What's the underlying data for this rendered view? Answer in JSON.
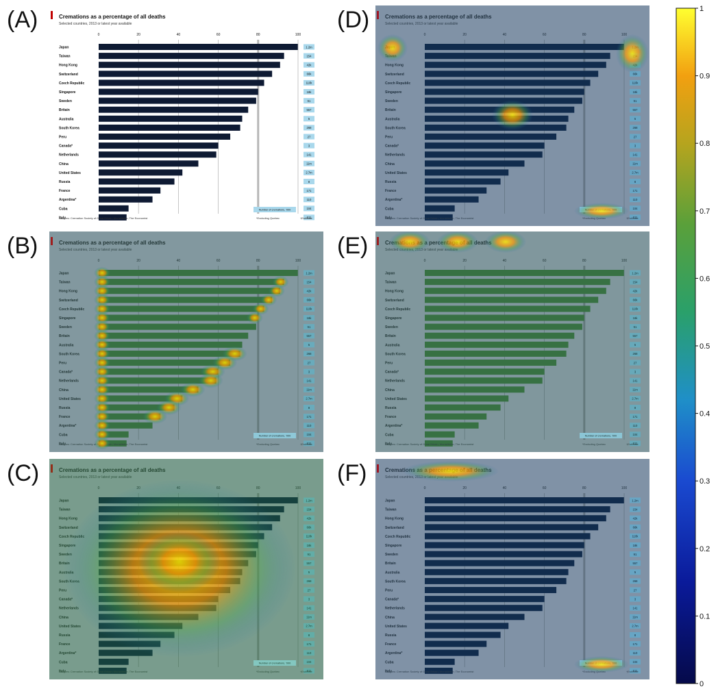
{
  "panels": [
    {
      "label": "(A)",
      "overlay": "none"
    },
    {
      "label": "(B)",
      "overlay": "bars"
    },
    {
      "label": "(C)",
      "overlay": "center"
    },
    {
      "label": "(D)",
      "overlay": "corners"
    },
    {
      "label": "(E)",
      "overlay": "title"
    },
    {
      "label": "(F)",
      "overlay": "title-short"
    }
  ],
  "chart_data": {
    "type": "bar",
    "title": "Cremations as a percentage of all deaths",
    "subtitle": "Selected countries, 2013 or latest year available",
    "categories": [
      "Japan",
      "Taiwan",
      "Hong Kong",
      "Switzerland",
      "Czech Republic",
      "Singapore",
      "Sweden",
      "Britain",
      "Australia",
      "South Korea",
      "Peru",
      "Canada*",
      "Netherlands",
      "China",
      "United States",
      "Russia",
      "France",
      "Argentina*",
      "Cuba",
      "Italy"
    ],
    "values": [
      99.9,
      93,
      91,
      87,
      83,
      80,
      79,
      75,
      72,
      71,
      66,
      60,
      59,
      50,
      42,
      38,
      31,
      27,
      15,
      14
    ],
    "right_labels": [
      "1.2m",
      "154",
      "42k",
      "66k",
      "110k",
      "18k",
      "91",
      "557",
      "5",
      "268",
      "27",
      "3",
      "141",
      "11m",
      "2.7m",
      "8",
      "171",
      "110",
      "104",
      "611"
    ],
    "xlim": [
      0,
      100
    ],
    "xticks": [
      0,
      20,
      40,
      60,
      80,
      100
    ],
    "right_header": "Number of cremations, '000",
    "source": "Sources: Cremation Society of Great Britain; Mortalitetim; The Economist",
    "footnote": "*Excluding Quebec",
    "footnote2": "†Estimate",
    "colorbar": {
      "ticks": [
        "0",
        "0.1",
        "0.2",
        "0.3",
        "0.4",
        "0.5",
        "0.6",
        "0.7",
        "0.8",
        "0.9",
        "1"
      ]
    }
  }
}
